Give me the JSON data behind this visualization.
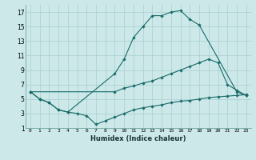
{
  "xlabel": "Humidex (Indice chaleur)",
  "bg_color": "#cce8e8",
  "grid_color": "#aacfcf",
  "line_color": "#1a6b6b",
  "xlim": [
    -0.5,
    23.5
  ],
  "ylim": [
    1,
    18
  ],
  "xticks": [
    0,
    1,
    2,
    3,
    4,
    5,
    6,
    7,
    8,
    9,
    10,
    11,
    12,
    13,
    14,
    15,
    16,
    17,
    18,
    19,
    20,
    21,
    22,
    23
  ],
  "yticks": [
    1,
    3,
    5,
    7,
    9,
    11,
    13,
    15,
    17
  ],
  "series": [
    {
      "x": [
        0,
        1,
        2,
        3,
        4,
        9,
        10,
        11,
        12,
        13,
        14,
        15,
        16,
        17,
        18,
        22,
        23
      ],
      "y": [
        6,
        5,
        4.5,
        3.5,
        3.2,
        8.5,
        10.5,
        13.5,
        15.0,
        16.5,
        16.5,
        17.0,
        17.2,
        16.0,
        15.2,
        6.0,
        5.5
      ]
    },
    {
      "x": [
        0,
        1,
        2,
        3,
        4,
        5,
        6,
        7,
        8,
        9,
        10,
        11,
        12,
        13,
        14,
        15,
        16,
        17,
        18,
        19,
        20,
        21,
        22,
        23
      ],
      "y": [
        6,
        5,
        4.5,
        3.5,
        3.2,
        3.0,
        2.7,
        1.5,
        2.0,
        2.5,
        3.0,
        3.5,
        3.8,
        4.0,
        4.2,
        4.5,
        4.7,
        4.8,
        5.0,
        5.2,
        5.3,
        5.4,
        5.5,
        5.6
      ]
    },
    {
      "x": [
        0,
        9,
        10,
        11,
        12,
        13,
        14,
        15,
        16,
        17,
        18,
        19,
        20,
        21,
        22,
        23
      ],
      "y": [
        6,
        6.0,
        6.5,
        6.8,
        7.2,
        7.5,
        8.0,
        8.5,
        9.0,
        9.5,
        10.0,
        10.5,
        10.0,
        7.0,
        6.2,
        5.5
      ]
    }
  ]
}
